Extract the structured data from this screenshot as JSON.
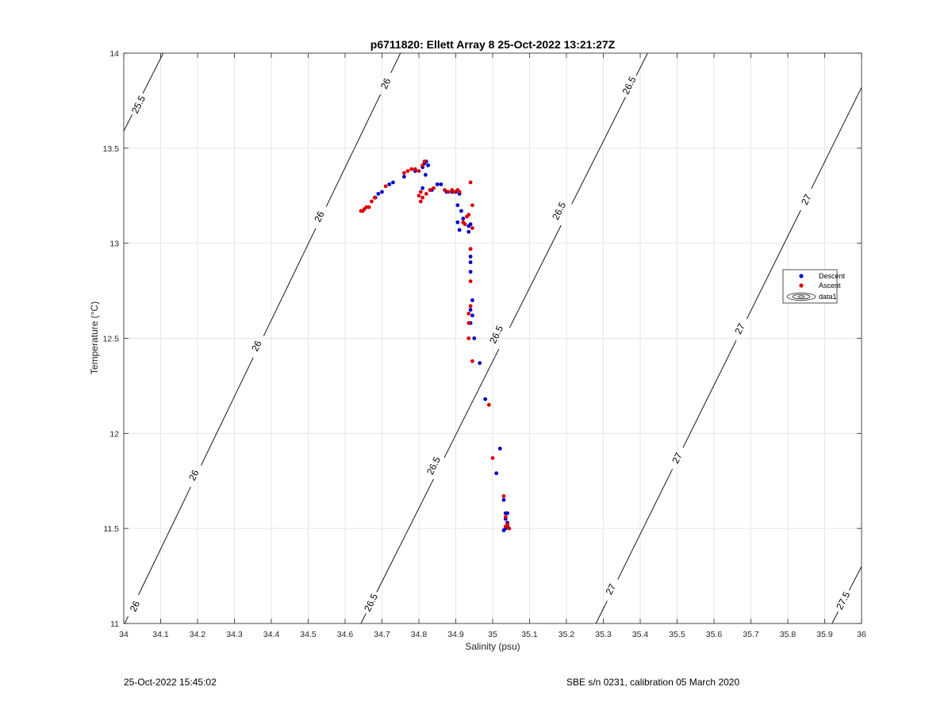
{
  "chart_data": {
    "type": "scatter",
    "title": "p6711820: Ellett Array 8 25-Oct-2022 13:21:27Z",
    "xlabel": "Salinity (psu)",
    "ylabel": "Temperature (°C)",
    "xlim": [
      34,
      36
    ],
    "ylim": [
      11,
      14
    ],
    "xticks": [
      "34",
      "34.1",
      "34.2",
      "34.3",
      "34.4",
      "34.5",
      "34.6",
      "34.7",
      "34.8",
      "34.9",
      "35",
      "35.1",
      "35.2",
      "35.3",
      "35.4",
      "35.5",
      "35.6",
      "35.7",
      "35.8",
      "35.9",
      "36"
    ],
    "yticks": [
      "11",
      "11.5",
      "12",
      "12.5",
      "13",
      "13.5",
      "14"
    ],
    "grid": true,
    "legend_position": "right",
    "series": [
      {
        "name": "Descent",
        "color": "#0000cc",
        "marker": "dot",
        "points": [
          [
            34.682,
            13.24
          ],
          [
            34.69,
            13.26
          ],
          [
            34.7,
            13.27
          ],
          [
            34.72,
            13.31
          ],
          [
            34.73,
            13.32
          ],
          [
            34.76,
            13.35
          ],
          [
            34.79,
            13.38
          ],
          [
            34.81,
            13.4
          ],
          [
            34.815,
            13.42
          ],
          [
            34.82,
            13.43
          ],
          [
            34.825,
            13.41
          ],
          [
            34.818,
            13.36
          ],
          [
            34.81,
            13.29
          ],
          [
            34.835,
            13.28
          ],
          [
            34.85,
            13.31
          ],
          [
            34.86,
            13.31
          ],
          [
            34.875,
            13.27
          ],
          [
            34.89,
            13.27
          ],
          [
            34.9,
            13.27
          ],
          [
            34.91,
            13.26
          ],
          [
            34.905,
            13.2
          ],
          [
            34.915,
            13.17
          ],
          [
            34.92,
            13.13
          ],
          [
            34.905,
            13.11
          ],
          [
            34.91,
            13.07
          ],
          [
            34.925,
            13.1
          ],
          [
            34.935,
            13.09
          ],
          [
            34.935,
            13.06
          ],
          [
            34.94,
            13.1
          ],
          [
            34.94,
            12.97
          ],
          [
            34.94,
            12.93
          ],
          [
            34.94,
            12.9
          ],
          [
            34.94,
            12.85
          ],
          [
            34.945,
            12.7
          ],
          [
            34.94,
            12.65
          ],
          [
            34.945,
            12.62
          ],
          [
            34.94,
            12.58
          ],
          [
            34.95,
            12.5
          ],
          [
            34.965,
            12.37
          ],
          [
            34.98,
            12.18
          ],
          [
            35.02,
            11.92
          ],
          [
            35.01,
            11.79
          ],
          [
            35.03,
            11.65
          ],
          [
            35.035,
            11.58
          ],
          [
            35.04,
            11.58
          ],
          [
            35.035,
            11.55
          ],
          [
            35.04,
            11.53
          ],
          [
            35.035,
            11.5
          ],
          [
            35.04,
            11.51
          ],
          [
            35.03,
            11.49
          ]
        ]
      },
      {
        "name": "Ascent",
        "color": "#dd0000",
        "marker": "dot",
        "points": [
          [
            34.643,
            13.17
          ],
          [
            34.648,
            13.17
          ],
          [
            34.652,
            13.18
          ],
          [
            34.658,
            13.19
          ],
          [
            34.665,
            13.19
          ],
          [
            34.672,
            13.22
          ],
          [
            34.68,
            13.24
          ],
          [
            34.71,
            13.3
          ],
          [
            34.76,
            13.37
          ],
          [
            34.77,
            13.38
          ],
          [
            34.78,
            13.39
          ],
          [
            34.79,
            13.39
          ],
          [
            34.8,
            13.38
          ],
          [
            34.81,
            13.41
          ],
          [
            34.815,
            13.43
          ],
          [
            34.805,
            13.27
          ],
          [
            34.8,
            13.25
          ],
          [
            34.805,
            13.22
          ],
          [
            34.81,
            13.24
          ],
          [
            34.82,
            13.26
          ],
          [
            34.83,
            13.28
          ],
          [
            34.84,
            13.29
          ],
          [
            34.87,
            13.28
          ],
          [
            34.88,
            13.27
          ],
          [
            34.89,
            13.28
          ],
          [
            34.895,
            13.27
          ],
          [
            34.905,
            13.28
          ],
          [
            34.91,
            13.27
          ],
          [
            34.92,
            13.11
          ],
          [
            34.925,
            13.1
          ],
          [
            34.93,
            13.14
          ],
          [
            34.935,
            13.15
          ],
          [
            34.945,
            13.2
          ],
          [
            34.94,
            13.32
          ],
          [
            34.945,
            13.08
          ],
          [
            34.94,
            12.97
          ],
          [
            34.94,
            12.8
          ],
          [
            34.94,
            12.67
          ],
          [
            34.935,
            12.63
          ],
          [
            34.935,
            12.58
          ],
          [
            34.935,
            12.5
          ],
          [
            34.945,
            12.38
          ],
          [
            34.99,
            12.15
          ],
          [
            35.0,
            11.87
          ],
          [
            35.03,
            11.67
          ],
          [
            35.035,
            11.56
          ],
          [
            35.04,
            11.52
          ],
          [
            35.045,
            11.5
          ],
          [
            35.035,
            11.51
          ]
        ]
      }
    ],
    "contours": {
      "name": "data1",
      "line_color": "#000000",
      "levels": [
        {
          "level": 25.5,
          "label": "25.5",
          "endpoints": [
            [
              34.0,
              13.59
            ],
            [
              34.107,
              14.0
            ]
          ],
          "label_positions": [
            [
              34.04,
              13.73
            ]
          ]
        },
        {
          "level": 26.0,
          "label": "26",
          "endpoints": [
            [
              34.0,
              10.99
            ],
            [
              34.75,
              14.0
            ]
          ],
          "label_positions": [
            [
              34.03,
              11.09
            ],
            [
              34.19,
              11.78
            ],
            [
              34.36,
              12.46
            ],
            [
              34.53,
              13.14
            ],
            [
              34.71,
              13.84
            ]
          ]
        },
        {
          "level": 26.5,
          "label": "26.5",
          "endpoints": [
            [
              34.643,
              11.0
            ],
            [
              35.42,
              14.0
            ]
          ],
          "label_positions": [
            [
              34.67,
              11.11
            ],
            [
              34.84,
              11.83
            ],
            [
              35.01,
              12.52
            ],
            [
              35.18,
              13.17
            ],
            [
              35.37,
              13.83
            ]
          ]
        },
        {
          "level": 27.0,
          "label": "27",
          "endpoints": [
            [
              35.28,
              11.0
            ],
            [
              36.0,
              13.82
            ]
          ],
          "label_positions": [
            [
              35.32,
              11.18
            ],
            [
              35.5,
              11.87
            ],
            [
              35.67,
              12.55
            ],
            [
              35.85,
              13.23
            ]
          ]
        },
        {
          "level": 27.5,
          "label": "27.5",
          "endpoints": [
            [
              35.92,
              11.0
            ],
            [
              36.0,
              11.3
            ]
          ],
          "label_positions": [
            [
              35.95,
              11.12
            ]
          ]
        }
      ]
    }
  },
  "footer": {
    "timestamp": "25-Oct-2022 15:45:02",
    "instrument": "SBE s/n 0231, calibration 05 March 2020"
  }
}
